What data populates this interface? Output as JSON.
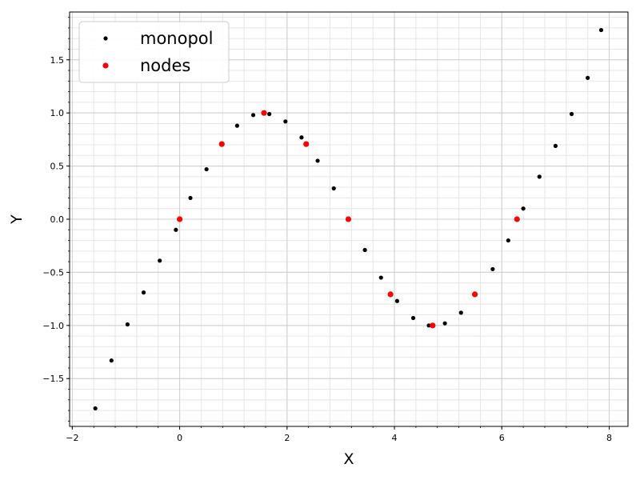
{
  "chart_data": {
    "type": "scatter",
    "title": "",
    "xlabel": "X",
    "ylabel": "Y",
    "xlim": [
      -2.05,
      8.35
    ],
    "ylim": [
      -1.95,
      1.95
    ],
    "grid": "major+minor",
    "legend_position": "top-left",
    "x_ticks": [
      -2,
      0,
      2,
      4,
      6,
      8
    ],
    "x_tick_labels": [
      "−2",
      "0",
      "2",
      "4",
      "6",
      "8"
    ],
    "y_ticks": [
      -1.5,
      -1.0,
      -0.5,
      0.0,
      0.5,
      1.0,
      1.5
    ],
    "y_tick_labels": [
      "−1.5",
      "−1.0",
      "−0.5",
      "0.0",
      "0.5",
      "1.0",
      "1.5"
    ],
    "series": [
      {
        "name": "monopol",
        "color": "#000000",
        "marker": "small-dot",
        "x": [
          -1.571,
          -1.271,
          -0.971,
          -0.671,
          -0.371,
          -0.071,
          0.2,
          0.5,
          1.07,
          1.37,
          1.67,
          1.97,
          2.27,
          2.57,
          2.87,
          3.45,
          3.75,
          4.05,
          4.35,
          4.64,
          4.94,
          5.24,
          5.83,
          6.12,
          6.4,
          6.7,
          7.0,
          7.3,
          7.6,
          7.85
        ],
        "y": [
          -1.78,
          -1.33,
          -0.99,
          -0.69,
          -0.39,
          -0.1,
          0.2,
          0.47,
          0.88,
          0.98,
          0.99,
          0.92,
          0.77,
          0.55,
          0.29,
          -0.29,
          -0.55,
          -0.77,
          -0.93,
          -1.0,
          -0.98,
          -0.88,
          -0.47,
          -0.2,
          0.1,
          0.4,
          0.69,
          0.99,
          1.33,
          1.78
        ]
      },
      {
        "name": "nodes",
        "color": "#ff0000",
        "marker": "dot",
        "x": [
          0.0,
          0.785,
          1.571,
          2.356,
          3.142,
          3.927,
          4.712,
          5.498,
          6.283
        ],
        "y": [
          0.0,
          0.707,
          1.0,
          0.707,
          0.0,
          -0.707,
          -1.0,
          -0.707,
          0.0
        ]
      }
    ]
  }
}
